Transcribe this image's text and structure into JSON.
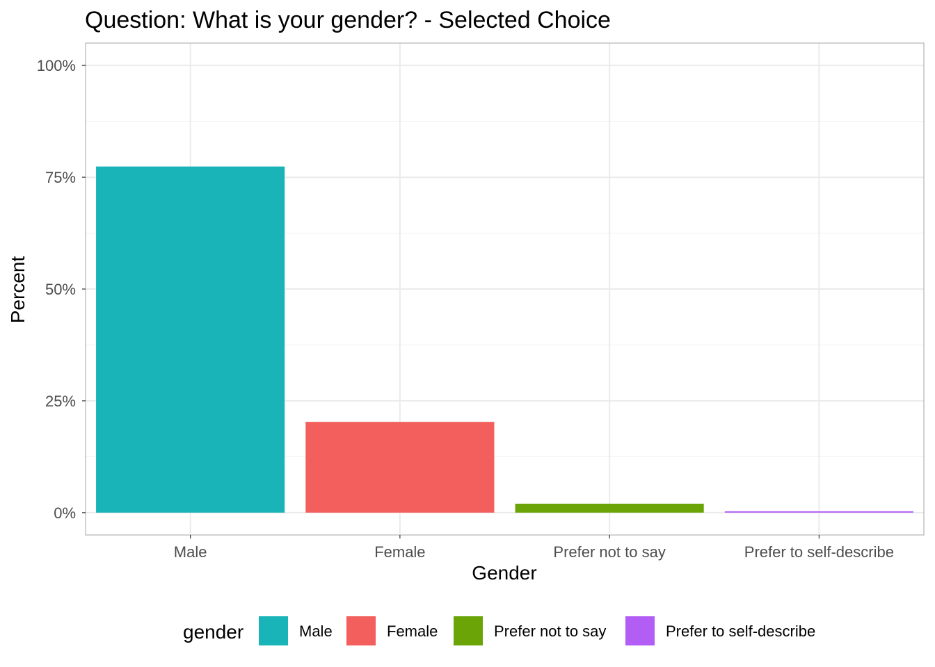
{
  "chart_data": {
    "type": "bar",
    "title": "Question: What is your gender? - Selected Choice",
    "xlabel": "Gender",
    "ylabel": "Percent",
    "categories": [
      "Male",
      "Female",
      "Prefer not to say",
      "Prefer to self-describe"
    ],
    "values": [
      77.4,
      20.3,
      2.0,
      0.3
    ],
    "colors": [
      "#19b4b8",
      "#f25f5c",
      "#6aa406",
      "#b25df3"
    ],
    "ylim": [
      -5,
      105
    ],
    "yticks": [
      0,
      25,
      50,
      75,
      100
    ],
    "ytick_labels": [
      "0%",
      "25%",
      "50%",
      "75%",
      "100%"
    ],
    "grid": true,
    "legend": {
      "title": "gender",
      "position": "bottom",
      "items": [
        "Male",
        "Female",
        "Prefer not to say",
        "Prefer to self-describe"
      ]
    }
  }
}
